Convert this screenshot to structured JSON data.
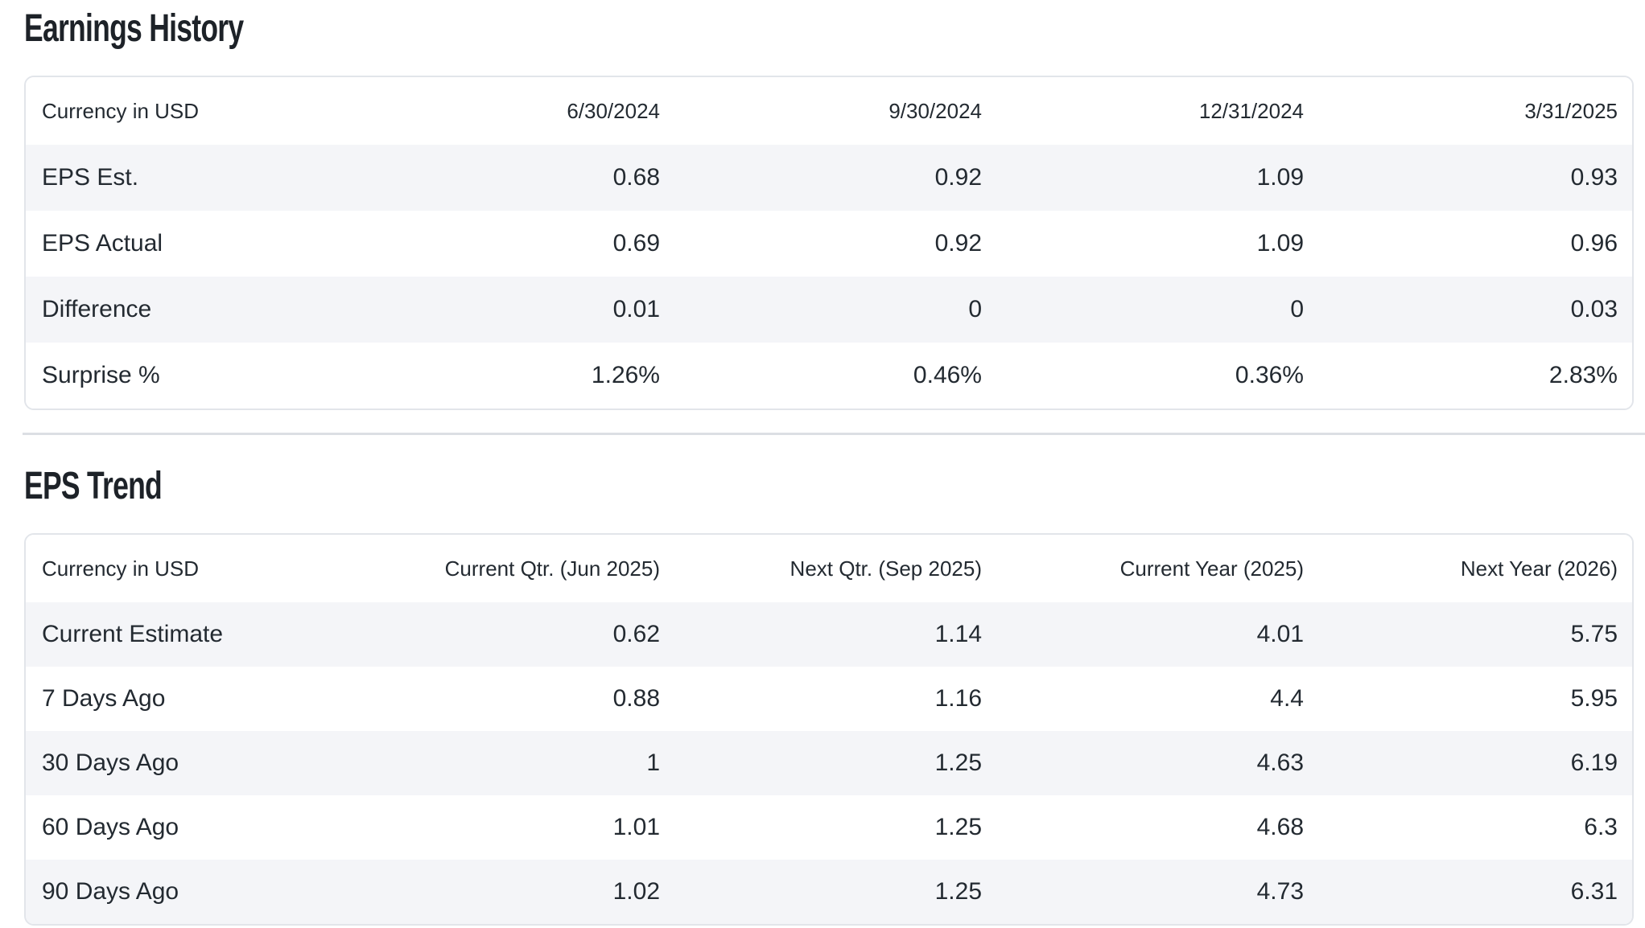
{
  "colors": {
    "row_stripe": "#f4f5f8",
    "card_border": "#e2e5ea",
    "divider": "#dcdfe4",
    "text": "#232a31",
    "title_text": "#1d2228"
  },
  "sections": [
    {
      "id": "earnings_history",
      "title": "Earnings History",
      "table": {
        "currency_label": "Currency in USD",
        "columns": [
          "6/30/2024",
          "9/30/2024",
          "12/31/2024",
          "3/31/2025"
        ],
        "rows": [
          {
            "label": "EPS Est.",
            "values": [
              "0.68",
              "0.92",
              "1.09",
              "0.93"
            ]
          },
          {
            "label": "EPS Actual",
            "values": [
              "0.69",
              "0.92",
              "1.09",
              "0.96"
            ]
          },
          {
            "label": "Difference",
            "values": [
              "0.01",
              "0",
              "0",
              "0.03"
            ]
          },
          {
            "label": "Surprise %",
            "values": [
              "1.26%",
              "0.46%",
              "0.36%",
              "2.83%"
            ]
          }
        ]
      }
    },
    {
      "id": "eps_trend",
      "title": "EPS Trend",
      "table": {
        "currency_label": "Currency in USD",
        "columns": [
          "Current Qtr. (Jun 2025)",
          "Next Qtr. (Sep 2025)",
          "Current Year (2025)",
          "Next Year (2026)"
        ],
        "rows": [
          {
            "label": "Current Estimate",
            "values": [
              "0.62",
              "1.14",
              "4.01",
              "5.75"
            ]
          },
          {
            "label": "7 Days Ago",
            "values": [
              "0.88",
              "1.16",
              "4.4",
              "5.95"
            ]
          },
          {
            "label": "30 Days Ago",
            "values": [
              "1",
              "1.25",
              "4.63",
              "6.19"
            ]
          },
          {
            "label": "60 Days Ago",
            "values": [
              "1.01",
              "1.25",
              "4.68",
              "6.3"
            ]
          },
          {
            "label": "90 Days Ago",
            "values": [
              "1.02",
              "1.25",
              "4.73",
              "6.31"
            ]
          }
        ]
      }
    }
  ]
}
